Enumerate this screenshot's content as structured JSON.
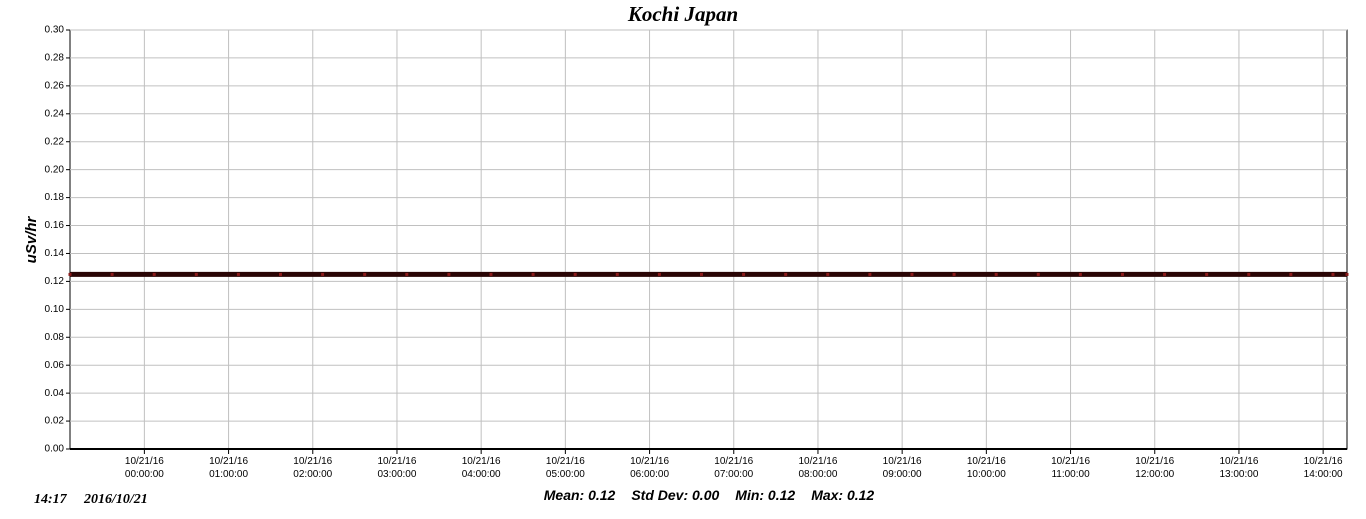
{
  "chart_data": {
    "type": "line",
    "title": "Kochi Japan",
    "y_label": "uSv/hr",
    "x": [
      "2016-10-20T23:07:00",
      "2016-10-20T23:37:00",
      "2016-10-21T00:07:00",
      "2016-10-21T00:37:00",
      "2016-10-21T01:07:00",
      "2016-10-21T01:37:00",
      "2016-10-21T02:07:00",
      "2016-10-21T02:37:00",
      "2016-10-21T03:07:00",
      "2016-10-21T03:37:00",
      "2016-10-21T04:07:00",
      "2016-10-21T04:37:00",
      "2016-10-21T05:07:00",
      "2016-10-21T05:37:00",
      "2016-10-21T06:07:00",
      "2016-10-21T06:37:00",
      "2016-10-21T07:07:00",
      "2016-10-21T07:37:00",
      "2016-10-21T08:07:00",
      "2016-10-21T08:37:00",
      "2016-10-21T09:07:00",
      "2016-10-21T09:37:00",
      "2016-10-21T10:07:00",
      "2016-10-21T10:37:00",
      "2016-10-21T11:07:00",
      "2016-10-21T11:37:00",
      "2016-10-21T12:07:00",
      "2016-10-21T12:37:00",
      "2016-10-21T13:07:00",
      "2016-10-21T13:37:00",
      "2016-10-21T14:07:00",
      "2016-10-21T14:17:00"
    ],
    "values": [
      0.125,
      0.125,
      0.125,
      0.125,
      0.125,
      0.125,
      0.125,
      0.125,
      0.125,
      0.125,
      0.125,
      0.125,
      0.125,
      0.125,
      0.125,
      0.125,
      0.125,
      0.125,
      0.125,
      0.125,
      0.125,
      0.125,
      0.125,
      0.125,
      0.125,
      0.125,
      0.125,
      0.125,
      0.125,
      0.125,
      0.125,
      0.125
    ],
    "color": "#8b1a1a",
    "xlim": [
      "2016-10-20T23:07:00",
      "2016-10-21T14:17:00"
    ],
    "xticks": [
      {
        "value": "2016-10-21T00:00:00",
        "label": "10/21/16 00:00:00"
      },
      {
        "value": "2016-10-21T01:00:00",
        "label": "10/21/16 01:00:00"
      },
      {
        "value": "2016-10-21T02:00:00",
        "label": "10/21/16 02:00:00"
      },
      {
        "value": "2016-10-21T03:00:00",
        "label": "10/21/16 03:00:00"
      },
      {
        "value": "2016-10-21T04:00:00",
        "label": "10/21/16 04:00:00"
      },
      {
        "value": "2016-10-21T05:00:00",
        "label": "10/21/16 05:00:00"
      },
      {
        "value": "2016-10-21T06:00:00",
        "label": "10/21/16 06:00:00"
      },
      {
        "value": "2016-10-21T07:00:00",
        "label": "10/21/16 07:00:00"
      },
      {
        "value": "2016-10-21T08:00:00",
        "label": "10/21/16 08:00:00"
      },
      {
        "value": "2016-10-21T09:00:00",
        "label": "10/21/16 09:00:00"
      },
      {
        "value": "2016-10-21T10:00:00",
        "label": "10/21/16 10:00:00"
      },
      {
        "value": "2016-10-21T11:00:00",
        "label": "10/21/16 11:00:00"
      },
      {
        "value": "2016-10-21T12:00:00",
        "label": "10/21/16 12:00:00"
      },
      {
        "value": "2016-10-21T13:00:00",
        "label": "10/21/16 13:00:00"
      },
      {
        "value": "2016-10-21T14:00:00",
        "label": "10/21/16 14:00:00"
      }
    ],
    "ylim": [
      0,
      0.3
    ],
    "yticks": [
      {
        "value": 0,
        "label": "0.00"
      },
      {
        "value": 0.02,
        "label": "0.02"
      },
      {
        "value": 0.04,
        "label": "0.04"
      },
      {
        "value": 0.06,
        "label": "0.06"
      },
      {
        "value": 0.08,
        "label": "0.08"
      },
      {
        "value": 0.1,
        "label": "0.10"
      },
      {
        "value": 0.12,
        "label": "0.12"
      },
      {
        "value": 0.14,
        "label": "0.14"
      },
      {
        "value": 0.16,
        "label": "0.16"
      },
      {
        "value": 0.18,
        "label": "0.18"
      },
      {
        "value": 0.2,
        "label": "0.20"
      },
      {
        "value": 0.22,
        "label": "0.22"
      },
      {
        "value": 0.24,
        "label": "0.24"
      },
      {
        "value": 0.26,
        "label": "0.26"
      },
      {
        "value": 0.28,
        "label": "0.28"
      },
      {
        "value": 0.3,
        "label": "0.30"
      }
    ],
    "grid": true,
    "stats": [
      "Mean: 0.12",
      "Std Dev: 0.00",
      "Min: 0.12",
      "Max: 0.12"
    ],
    "timestamp": [
      "14:17",
      "2016/10/21"
    ]
  }
}
